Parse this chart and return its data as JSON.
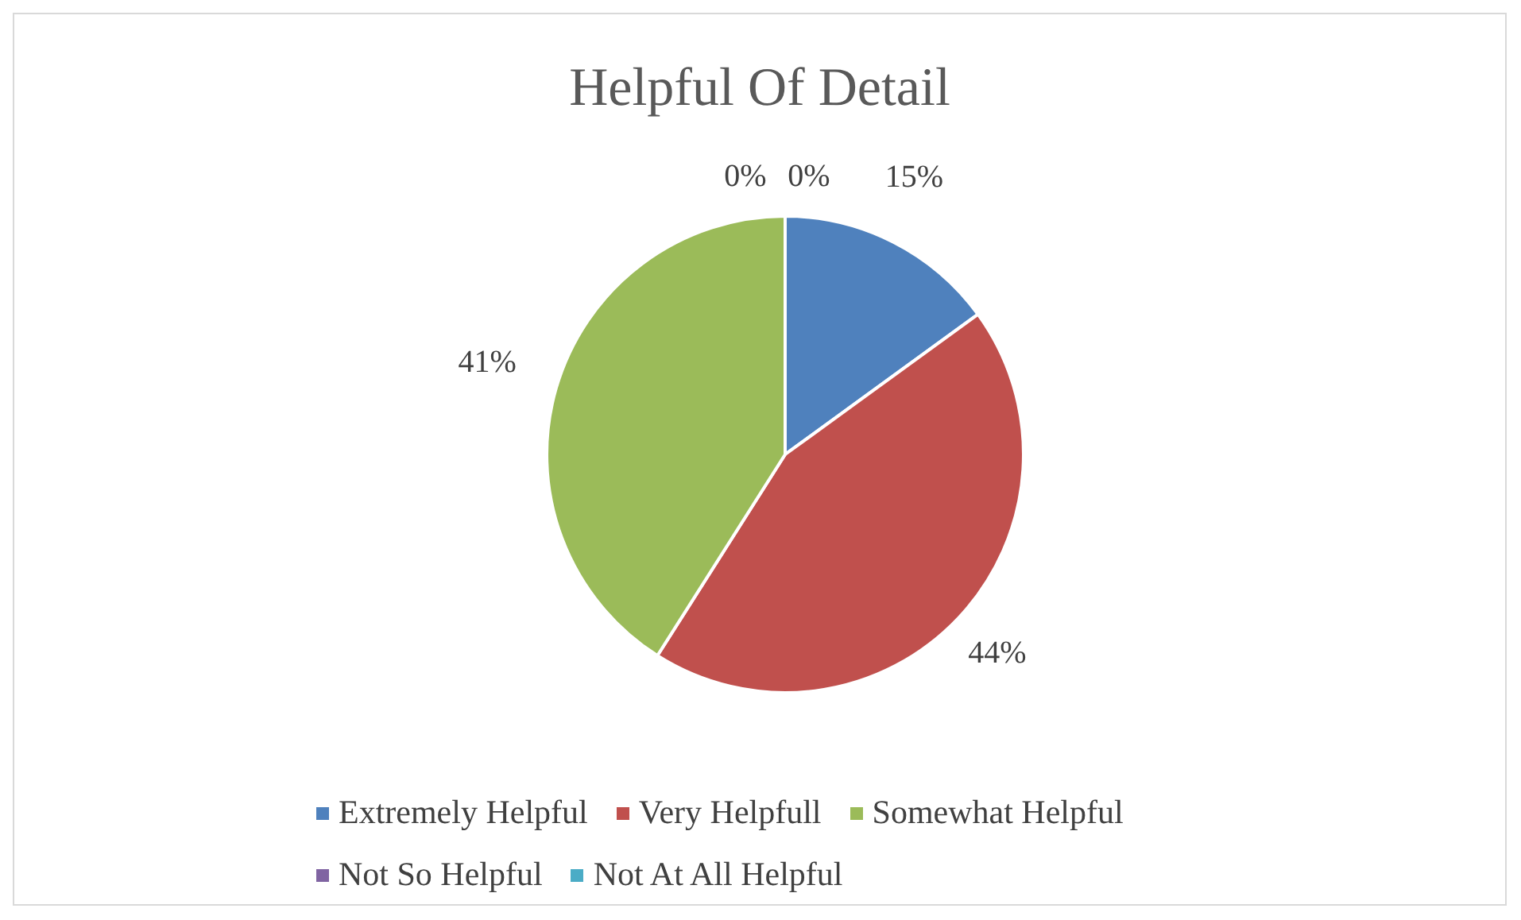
{
  "chart_data": {
    "type": "pie",
    "title": "Helpful Of Detail",
    "categories": [
      "Extremely Helpful",
      "Very Helpfull",
      "Somewhat Helpful",
      "Not So Helpful",
      "Not At All Helpful"
    ],
    "values": [
      15,
      44,
      41,
      0,
      0
    ],
    "colors": [
      "#4f81bd",
      "#c0504d",
      "#9bbb59",
      "#8064a2",
      "#4bacc6"
    ],
    "value_labels": [
      "15%",
      "44%",
      "41%",
      "0%",
      "0%"
    ],
    "legend": "bottom"
  }
}
